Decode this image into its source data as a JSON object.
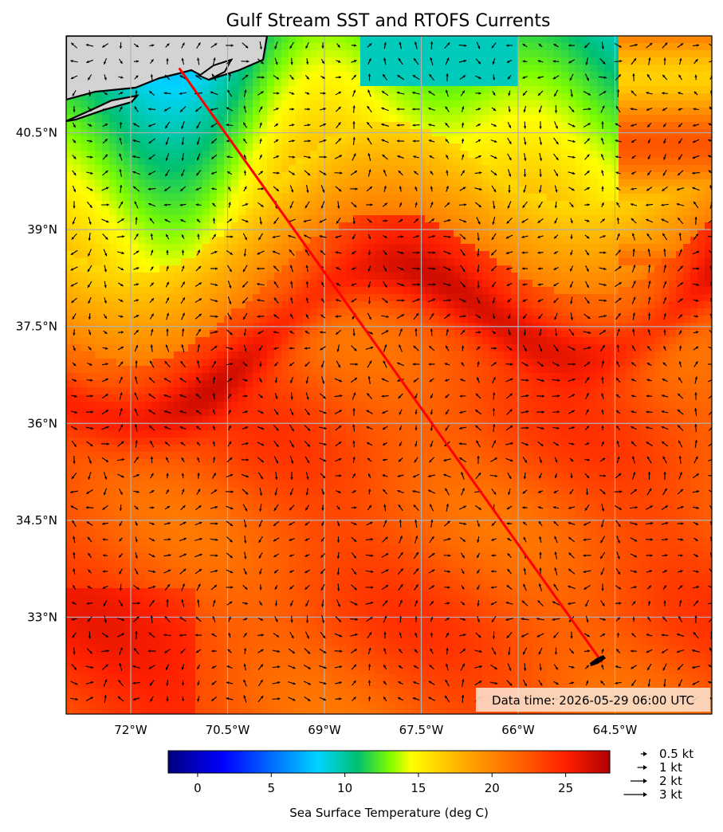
{
  "title": "Gulf Stream SST and RTOFS Currents",
  "data_time_label": "Data time: 2026-05-29 06:00 UTC",
  "map": {
    "lon_range": [
      -73.0,
      -63.0
    ],
    "lat_range": [
      31.5,
      42.0
    ],
    "lon_ticks": [
      {
        "value": -72.0,
        "label": "72°W"
      },
      {
        "value": -70.5,
        "label": "70.5°W"
      },
      {
        "value": -69.0,
        "label": "69°W"
      },
      {
        "value": -67.5,
        "label": "67.5°W"
      },
      {
        "value": -66.0,
        "label": "66°W"
      },
      {
        "value": -64.5,
        "label": "64.5°W"
      }
    ],
    "lat_ticks": [
      {
        "value": 40.5,
        "label": "40.5°N"
      },
      {
        "value": 39.0,
        "label": "39°N"
      },
      {
        "value": 37.5,
        "label": "37.5°N"
      },
      {
        "value": 36.0,
        "label": "36°N"
      },
      {
        "value": 34.5,
        "label": "34.5°N"
      },
      {
        "value": 33.0,
        "label": "33°N"
      }
    ],
    "grid": true,
    "route": {
      "color": "#ff0000",
      "start": {
        "lon": -71.25,
        "lat": 41.5
      },
      "end": {
        "lon": -64.7,
        "lat": 32.3
      }
    },
    "land_color": "#d3d3d3"
  },
  "colorbar": {
    "label": "Sea Surface Temperature (deg C)",
    "range": [
      -2,
      28
    ],
    "ticks": [
      {
        "value": 0,
        "label": "0"
      },
      {
        "value": 5,
        "label": "5"
      },
      {
        "value": 10,
        "label": "10"
      },
      {
        "value": 15,
        "label": "15"
      },
      {
        "value": 20,
        "label": "20"
      },
      {
        "value": 25,
        "label": "25"
      }
    ],
    "colormap": "jet"
  },
  "vector_legend": [
    {
      "label": "0.5 kt",
      "speed": 0.5
    },
    {
      "label": "1 kt",
      "speed": 1
    },
    {
      "label": "2 kt",
      "speed": 2
    },
    {
      "label": "3 kt",
      "speed": 3
    }
  ]
}
